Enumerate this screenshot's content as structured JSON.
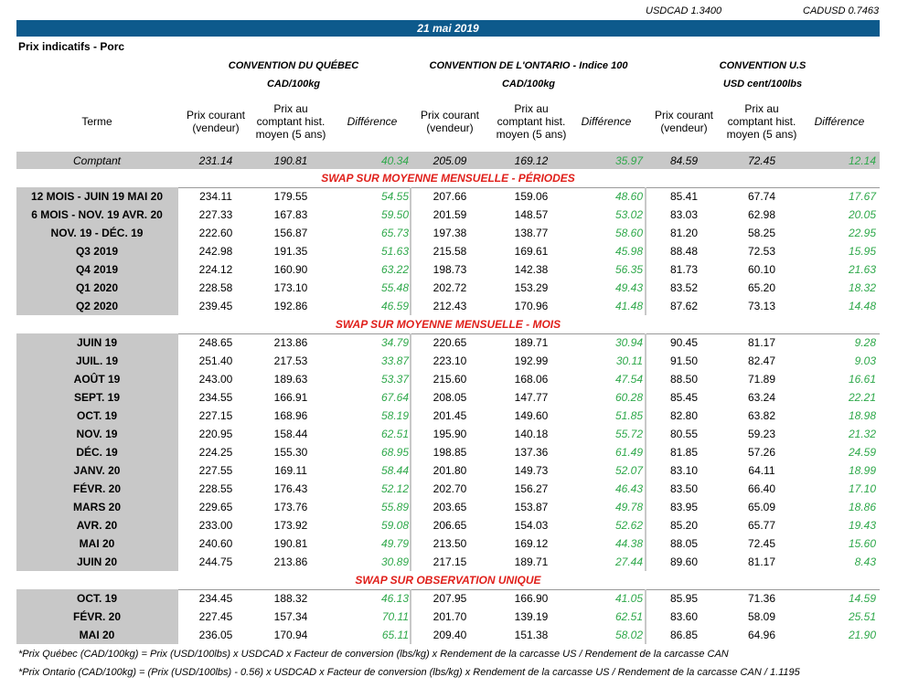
{
  "header": {
    "usdcad": "USDCAD 1.3400",
    "cadusd": "CADUSD 0.7463",
    "date": "21 mai 2019",
    "subtitle": "Prix indicatifs - Porc"
  },
  "table": {
    "groups": [
      {
        "name": "CONVENTION DU QUÉBEC",
        "unit": "CAD/100kg"
      },
      {
        "name": "CONVENTION DE L'ONTARIO - Indice 100",
        "unit": "CAD/100kg"
      },
      {
        "name": "CONVENTION U.S",
        "unit": "USD cent/100lbs"
      }
    ],
    "columns": [
      "Terme",
      "Prix courant\n(vendeur)",
      "Prix au\ncomptant hist.\nmoyen (5 ans)",
      "Différence",
      "Prix courant\n(vendeur)",
      "Prix au\ncomptant hist.\nmoyen (5 ans)",
      "Différence",
      "Prix courant\n(vendeur)",
      "Prix au\ncomptant hist.\nmoyen (5 ans)",
      "Différence"
    ],
    "spot": [
      "Comptant",
      "231.14",
      "190.81",
      "40.34",
      "205.09",
      "169.12",
      "35.97",
      "84.59",
      "72.45",
      "12.14"
    ],
    "sections": [
      {
        "title": "SWAP SUR MOYENNE MENSUELLE - PÉRIODES",
        "rows": [
          [
            "12 MOIS -  JUIN 19 MAI 20",
            "234.11",
            "179.55",
            "54.55",
            "207.66",
            "159.06",
            "48.60",
            "85.41",
            "67.74",
            "17.67"
          ],
          [
            "6 MOIS -  NOV. 19 AVR. 20",
            "227.33",
            "167.83",
            "59.50",
            "201.59",
            "148.57",
            "53.02",
            "83.03",
            "62.98",
            "20.05"
          ],
          [
            "NOV. 19 -  DÉC. 19",
            "222.60",
            "156.87",
            "65.73",
            "197.38",
            "138.77",
            "58.60",
            "81.20",
            "58.25",
            "22.95"
          ],
          [
            "Q3 2019",
            "242.98",
            "191.35",
            "51.63",
            "215.58",
            "169.61",
            "45.98",
            "88.48",
            "72.53",
            "15.95"
          ],
          [
            "Q4 2019",
            "224.12",
            "160.90",
            "63.22",
            "198.73",
            "142.38",
            "56.35",
            "81.73",
            "60.10",
            "21.63"
          ],
          [
            "Q1 2020",
            "228.58",
            "173.10",
            "55.48",
            "202.72",
            "153.29",
            "49.43",
            "83.52",
            "65.20",
            "18.32"
          ],
          [
            "Q2 2020",
            "239.45",
            "192.86",
            "46.59",
            "212.43",
            "170.96",
            "41.48",
            "87.62",
            "73.13",
            "14.48"
          ]
        ]
      },
      {
        "title": "SWAP SUR MOYENNE MENSUELLE - MOIS",
        "rows": [
          [
            "JUIN 19",
            "248.65",
            "213.86",
            "34.79",
            "220.65",
            "189.71",
            "30.94",
            "90.45",
            "81.17",
            "9.28"
          ],
          [
            "JUIL. 19",
            "251.40",
            "217.53",
            "33.87",
            "223.10",
            "192.99",
            "30.11",
            "91.50",
            "82.47",
            "9.03"
          ],
          [
            "AOÛT 19",
            "243.00",
            "189.63",
            "53.37",
            "215.60",
            "168.06",
            "47.54",
            "88.50",
            "71.89",
            "16.61"
          ],
          [
            "SEPT. 19",
            "234.55",
            "166.91",
            "67.64",
            "208.05",
            "147.77",
            "60.28",
            "85.45",
            "63.24",
            "22.21"
          ],
          [
            "OCT. 19",
            "227.15",
            "168.96",
            "58.19",
            "201.45",
            "149.60",
            "51.85",
            "82.80",
            "63.82",
            "18.98"
          ],
          [
            "NOV. 19",
            "220.95",
            "158.44",
            "62.51",
            "195.90",
            "140.18",
            "55.72",
            "80.55",
            "59.23",
            "21.32"
          ],
          [
            "DÉC. 19",
            "224.25",
            "155.30",
            "68.95",
            "198.85",
            "137.36",
            "61.49",
            "81.85",
            "57.26",
            "24.59"
          ],
          [
            "JANV. 20",
            "227.55",
            "169.11",
            "58.44",
            "201.80",
            "149.73",
            "52.07",
            "83.10",
            "64.11",
            "18.99"
          ],
          [
            "FÉVR. 20",
            "228.55",
            "176.43",
            "52.12",
            "202.70",
            "156.27",
            "46.43",
            "83.50",
            "66.40",
            "17.10"
          ],
          [
            "MARS 20",
            "229.65",
            "173.76",
            "55.89",
            "203.65",
            "153.87",
            "49.78",
            "83.95",
            "65.09",
            "18.86"
          ],
          [
            "AVR. 20",
            "233.00",
            "173.92",
            "59.08",
            "206.65",
            "154.03",
            "52.62",
            "85.20",
            "65.77",
            "19.43"
          ],
          [
            "MAI 20",
            "240.60",
            "190.81",
            "49.79",
            "213.50",
            "169.12",
            "44.38",
            "88.05",
            "72.45",
            "15.60"
          ],
          [
            "JUIN 20",
            "244.75",
            "213.86",
            "30.89",
            "217.15",
            "189.71",
            "27.44",
            "89.60",
            "81.17",
            "8.43"
          ]
        ]
      },
      {
        "title": "SWAP SUR OBSERVATION UNIQUE",
        "rows": [
          [
            "OCT. 19",
            "234.45",
            "188.32",
            "46.13",
            "207.95",
            "166.90",
            "41.05",
            "85.95",
            "71.36",
            "14.59"
          ],
          [
            "FÉVR. 20",
            "227.45",
            "157.34",
            "70.11",
            "201.70",
            "139.19",
            "62.51",
            "83.60",
            "58.09",
            "25.51"
          ],
          [
            "MAI 20",
            "236.05",
            "170.94",
            "65.11",
            "209.40",
            "151.38",
            "58.02",
            "86.85",
            "64.96",
            "21.90"
          ]
        ]
      }
    ]
  },
  "footnotes": [
    "*Prix Québec (CAD/100kg) = Prix (USD/100lbs) x USDCAD x Facteur de conversion (lbs/kg) x Rendement de la carcasse US / Rendement de la carcasse CAN",
    "*Prix Ontario (CAD/100kg) = (Prix (USD/100lbs) - 0.56) x USDCAD x Facteur de conversion (lbs/kg) x Rendement de la carcasse US / Rendement de la carcasse CAN / 1.1195"
  ]
}
